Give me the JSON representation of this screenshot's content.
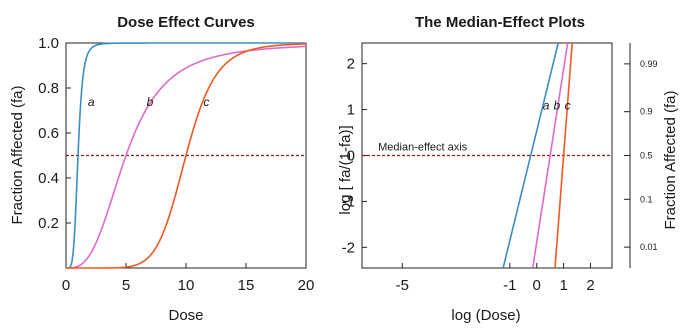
{
  "chart_data": [
    {
      "type": "line",
      "title": "Dose Effect Curves",
      "xlabel": "Dose",
      "ylabel": "Fraction Affected (fa)",
      "xlim": [
        0,
        20
      ],
      "ylim": [
        0,
        1.0
      ],
      "xticks": [
        "0",
        "5",
        "10",
        "15",
        "20"
      ],
      "yticks": [
        "0.2",
        "0.4",
        "0.6",
        "0.8",
        "1.0"
      ],
      "hline": {
        "y": 0.5,
        "style": "dashed",
        "color": "#8b1a1a"
      },
      "series": [
        {
          "name": "a",
          "color": "#3b8ec4",
          "Dm": 1,
          "m": 5,
          "label_at": [
            2.1,
            0.72
          ]
        },
        {
          "name": "b",
          "color": "#e06ac8",
          "Dm": 5,
          "m": 3,
          "label_at": [
            7.0,
            0.72
          ]
        },
        {
          "name": "c",
          "color": "#f05a1e",
          "Dm": 10,
          "m": 8,
          "label_at": [
            11.7,
            0.72
          ]
        }
      ]
    },
    {
      "type": "line",
      "title": "The Median-Effect Plots",
      "xlabel": "log (Dose)",
      "ylabel": "log [ fa/(1-fa)]",
      "y2label": "Fraction Affected (fa)",
      "xlim": [
        -6.5,
        2.8
      ],
      "ylim": [
        -2.45,
        2.45
      ],
      "xticks": [
        "-5",
        "-1",
        "0",
        "1",
        "2"
      ],
      "yticks": [
        "-2",
        "-1",
        "0",
        "1",
        "2"
      ],
      "y2ticks": [
        "0.01",
        "0.1",
        "0.5",
        "0.9",
        "0.99"
      ],
      "annotation": "Median-effect axis",
      "hline": {
        "y": 0,
        "style": "dashed",
        "color": "#8b1a1a"
      },
      "series": [
        {
          "name": "a",
          "color": "#3b8ec4",
          "x": [
            -1.25,
            0.8
          ],
          "y": [
            -2.45,
            2.45
          ],
          "label_at": [
            0.35,
            1.0
          ]
        },
        {
          "name": "b",
          "color": "#e06ac8",
          "x": [
            -0.15,
            1.15
          ],
          "y": [
            -2.45,
            2.45
          ],
          "label_at": [
            0.75,
            1.0
          ]
        },
        {
          "name": "c",
          "color": "#f05a1e",
          "x": [
            0.68,
            1.32
          ],
          "y": [
            -2.45,
            2.45
          ],
          "label_at": [
            1.15,
            1.0
          ]
        }
      ]
    }
  ]
}
